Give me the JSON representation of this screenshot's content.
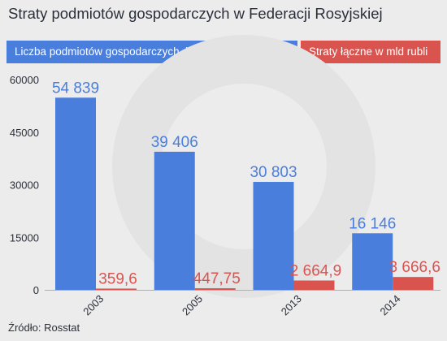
{
  "title": "Straty podmiotów gospodarczych w Federacji Rosyjskiej",
  "source": "Źródło: Rosstat",
  "colors": {
    "series0": "#4a7edc",
    "series1": "#d9534f",
    "axis": "#2a2f3a",
    "background": "#ececec",
    "watermark": "#e3e3e3"
  },
  "chart_data": {
    "type": "bar",
    "categories": [
      "2003",
      "2005",
      "2013",
      "2014"
    ],
    "series": [
      {
        "name": "Liczba podmiotów gospodarczych, które poniosły straty",
        "values": [
          54839,
          39406,
          30803,
          16146
        ],
        "labels": [
          "54 839",
          "39 406",
          "30 803",
          "16 146"
        ]
      },
      {
        "name": "Straty łączne w mld rubli",
        "values": [
          359.6,
          447.75,
          2664.9,
          3666.6
        ],
        "labels": [
          "359,6",
          "447,75",
          "2 664,9",
          "3 666,6"
        ]
      }
    ],
    "ylim": [
      0,
      60000
    ],
    "yticks": [
      0,
      15000,
      30000,
      45000,
      60000
    ],
    "ytick_labels": [
      "0",
      "15000",
      "30000",
      "45000",
      "60000"
    ],
    "legend": "top",
    "grid": false
  }
}
